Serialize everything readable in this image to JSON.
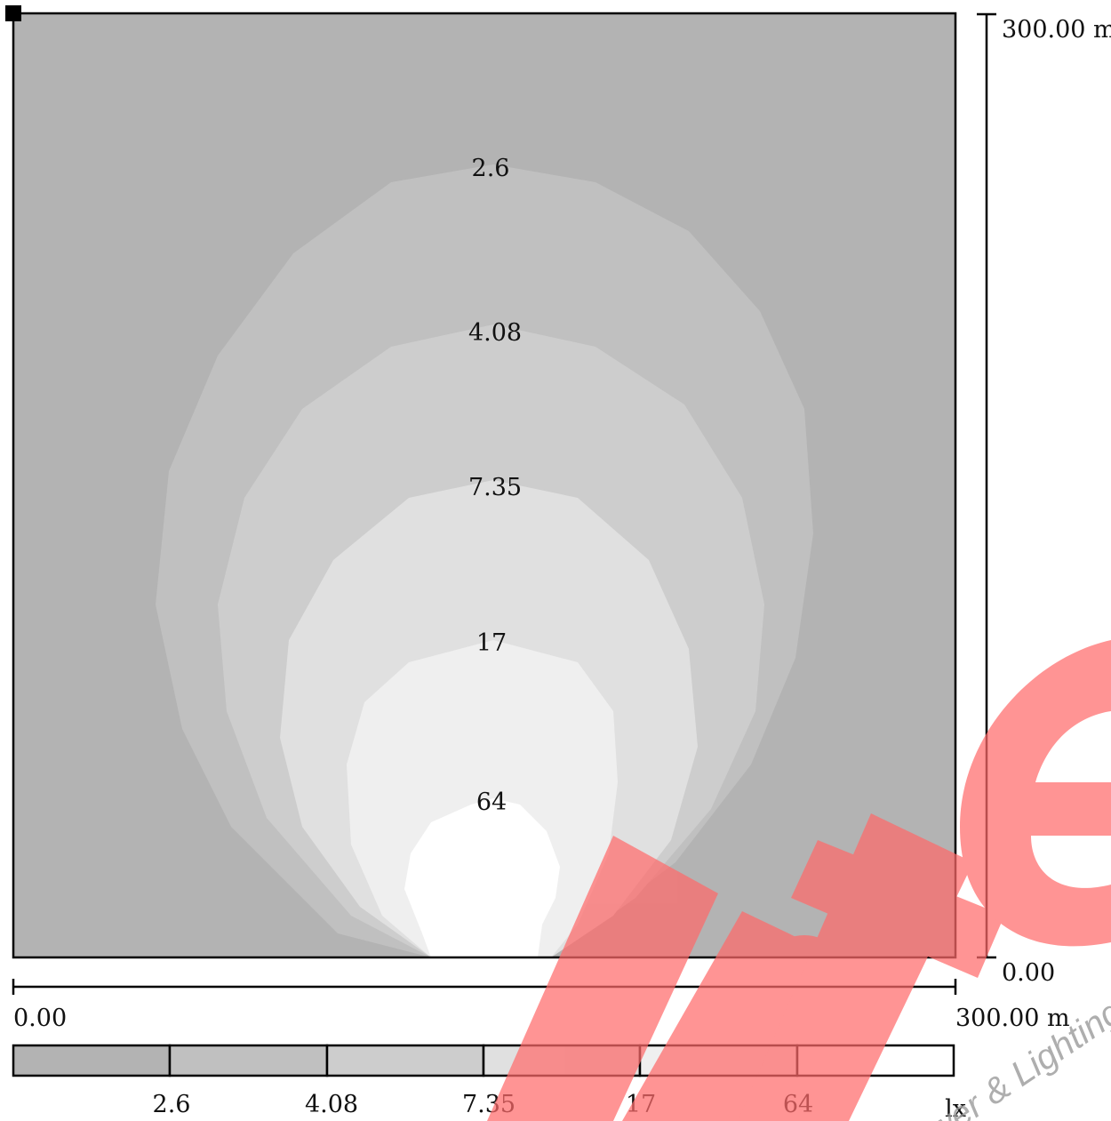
{
  "plot": {
    "contour_labels": [
      "2.6",
      "4.08",
      "7.35",
      "17",
      "64"
    ]
  },
  "axes": {
    "y": {
      "max_label": "300.00 m",
      "min_label": "0.00"
    },
    "x": {
      "min_label": "0.00",
      "max_label": "300.00 m"
    }
  },
  "legend": {
    "levels": [
      "2.6",
      "4.08",
      "7.35",
      "17",
      "64"
    ],
    "unit": "lx",
    "colors": [
      "#b3b3b3",
      "#c0c0c0",
      "#cdcdcd",
      "#e0e0e0",
      "#efefef",
      "#ffffff"
    ]
  },
  "watermark": {
    "brand": "alitec",
    "tagline": "Power & Lighting"
  },
  "colors": {
    "fill_bands": [
      "#b3b3b3",
      "#c0c0c0",
      "#cdcdcd",
      "#e0e0e0",
      "#efefef",
      "#ffffff"
    ],
    "watermark": "#ff6b6b",
    "frame": "#000000"
  }
}
